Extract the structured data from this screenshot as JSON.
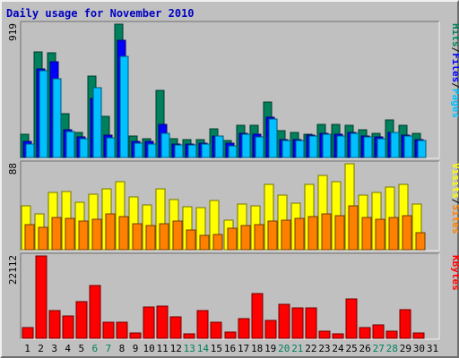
{
  "chart_data": {
    "type": "bar",
    "title": "Daily usage for November 2010",
    "categories": [
      "1",
      "2",
      "3",
      "4",
      "5",
      "6",
      "7",
      "8",
      "9",
      "10",
      "11",
      "12",
      "13",
      "14",
      "15",
      "16",
      "17",
      "18",
      "19",
      "20",
      "21",
      "22",
      "23",
      "24",
      "25",
      "26",
      "27",
      "28",
      "29",
      "30",
      "31"
    ],
    "weekend_days": [
      "6",
      "7",
      "13",
      "14",
      "20",
      "21",
      "27",
      "28"
    ],
    "panels": [
      {
        "id": "hits-files-pages",
        "max_label": "919",
        "ylim": [
          0,
          919
        ],
        "legend": [
          "Pages",
          "Files",
          "Hits"
        ],
        "series": [
          {
            "name": "Hits",
            "color": "#00805c",
            "values": [
              160,
              725,
              720,
              300,
              175,
              560,
              285,
              919,
              145,
              130,
              460,
              130,
              125,
              125,
              200,
              120,
              220,
              220,
              380,
              185,
              170,
              160,
              230,
              230,
              225,
              190,
              165,
              260,
              225,
              165,
              0
            ]
          },
          {
            "name": "Files",
            "color": "#0000ff",
            "values": [
              110,
              610,
              660,
              190,
              140,
              410,
              155,
              810,
              110,
              110,
              230,
              95,
              95,
              100,
              150,
              100,
              165,
              160,
              280,
              125,
              125,
              155,
              165,
              160,
              175,
              150,
              140,
              175,
              155,
              125,
              0
            ]
          },
          {
            "name": "Pages",
            "color": "#00c0ff",
            "values": [
              95,
              600,
              540,
              180,
              130,
              480,
              135,
              700,
              100,
              95,
              165,
              85,
              85,
              90,
              145,
              80,
              160,
              140,
              265,
              115,
              120,
              145,
              160,
              150,
              165,
              140,
              130,
              170,
              150,
              120,
              0
            ]
          }
        ]
      },
      {
        "id": "visits-sites",
        "max_label": "88",
        "ylim": [
          0,
          88
        ],
        "legend": [
          "Sites",
          "Visits"
        ],
        "series": [
          {
            "name": "Visits",
            "color": "#ffff00",
            "values": [
              45,
              37,
              59,
              60,
              49,
              57,
              62,
              70,
              54,
              46,
              62,
              51,
              44,
              43,
              50,
              30,
              47,
              45,
              67,
              56,
              48,
              67,
              76,
              70,
              88,
              56,
              59,
              64,
              67,
              47,
              0
            ]
          },
          {
            "name": "Sites",
            "color": "#ff8000",
            "values": [
              26,
              23,
              33,
              32,
              29,
              31,
              37,
              34,
              27,
              25,
              27,
              29,
              20,
              15,
              16,
              22,
              25,
              26,
              29,
              30,
              32,
              34,
              37,
              35,
              45,
              33,
              31,
              33,
              35,
              17,
              0
            ]
          }
        ]
      },
      {
        "id": "kbytes",
        "max_label": "22112",
        "ylim": [
          0,
          22112
        ],
        "legend": [
          "KBytes"
        ],
        "series": [
          {
            "name": "KBytes",
            "color": "#ff0000",
            "values": [
              2800,
              22112,
              7500,
              6000,
              9800,
              14300,
              4400,
              4400,
              1500,
              8300,
              8600,
              5800,
              1200,
              7500,
              4300,
              1800,
              5400,
              11900,
              4700,
              9100,
              8200,
              8200,
              1900,
              1200,
              10600,
              2800,
              3500,
              1900,
              7700,
              1400,
              0
            ]
          }
        ]
      }
    ]
  }
}
